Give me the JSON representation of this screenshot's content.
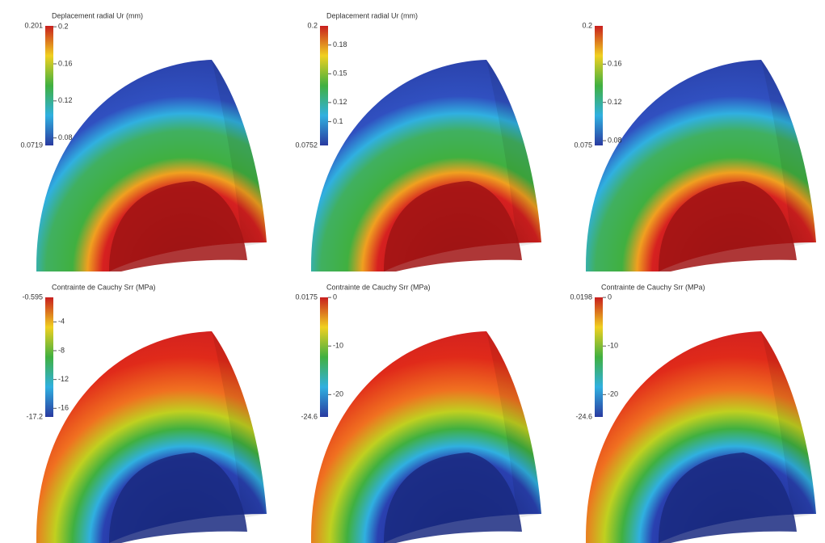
{
  "panels": [
    {
      "title": "Deplacement radial Ur (mm)",
      "max": 0.201,
      "min": 0.0719,
      "ticks": [
        0.2,
        0.16,
        0.12,
        0.08
      ]
    },
    {
      "title": "Deplacement radial Ur (mm)",
      "max": 0.2,
      "min": 0.0752,
      "ticks": [
        0.18,
        0.15,
        0.12,
        0.1
      ]
    },
    {
      "max": 0.2,
      "min": 0.075,
      "ticks": [
        0.16,
        0.12,
        0.08
      ]
    },
    {
      "title": "Contrainte de Cauchy Srr (MPa)",
      "max": -0.595,
      "min": -17.2,
      "ticks": [
        -4,
        -8,
        -12,
        -16
      ]
    },
    {
      "title": "Contrainte de Cauchy Srr (MPa)",
      "max": 0.0175,
      "min": -24.6,
      "ticks": [
        0,
        -10,
        -20
      ]
    },
    {
      "title": "Contrainte de Cauchy Srr (MPa)",
      "max": 0.0198,
      "min": -24.6,
      "ticks": [
        0,
        -10,
        -20
      ]
    }
  ]
}
